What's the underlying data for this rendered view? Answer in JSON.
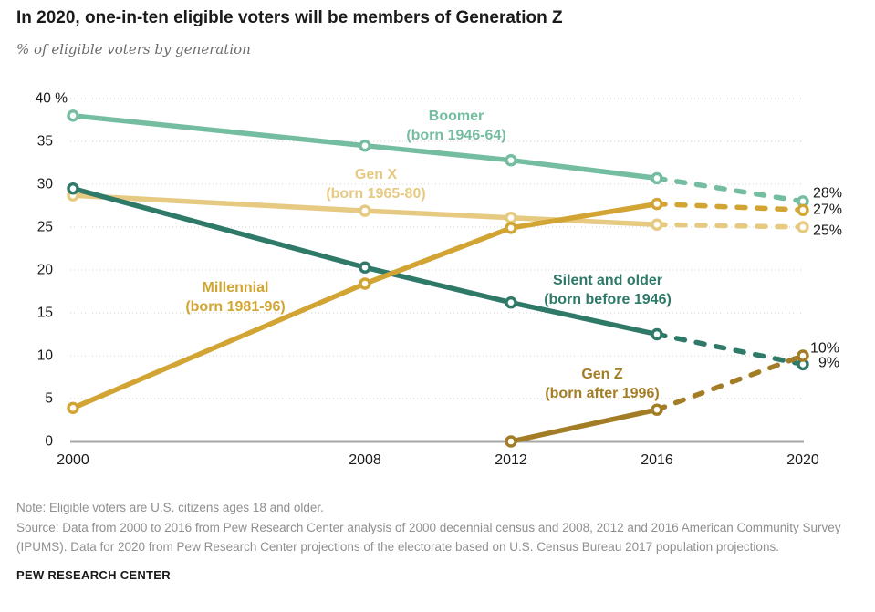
{
  "header": {
    "title": "In 2020, one-in-ten eligible voters will be members of Generation Z",
    "subtitle": "% of eligible voters by generation"
  },
  "chart_data": {
    "type": "line",
    "title": "% of eligible voters by generation",
    "x": [
      2000,
      2008,
      2012,
      2016,
      2020
    ],
    "x_tick_labels": [
      "2000",
      "2008",
      "2012",
      "2016",
      "2020"
    ],
    "y_ticks": [
      0,
      5,
      10,
      15,
      20,
      25,
      30,
      35,
      40
    ],
    "y_tick_labels": [
      "0",
      "5",
      "10",
      "15",
      "20",
      "25",
      "30",
      "35",
      "40 %"
    ],
    "ylim": [
      0,
      40
    ],
    "grid": "dotted-horizontal",
    "dashed_segment_years": [
      2016,
      2020
    ],
    "series": [
      {
        "name": "Boomer",
        "label_lines": [
          "Boomer",
          "(born 1946-64)"
        ],
        "color": "#74bda0",
        "values": [
          38,
          34.5,
          32.8,
          30.7,
          28
        ],
        "end_label": "28%"
      },
      {
        "name": "Gen X",
        "label_lines": [
          "Gen X",
          "(born 1965-80)"
        ],
        "color": "#e7ca82",
        "values": [
          28.7,
          26.9,
          26.1,
          25.3,
          25
        ],
        "end_label": "25%"
      },
      {
        "name": "Millennial",
        "label_lines": [
          "Millennial",
          "(born 1981-96)"
        ],
        "color": "#d2a433",
        "values": [
          3.9,
          18.4,
          24.9,
          27.7,
          27
        ],
        "end_label": "27%"
      },
      {
        "name": "Silent and older",
        "label_lines": [
          "Silent and older",
          "(born before 1946)"
        ],
        "color": "#2e7968",
        "values": [
          29.5,
          20.3,
          16.2,
          12.5,
          9
        ],
        "end_label": "9%"
      },
      {
        "name": "Gen Z",
        "label_lines": [
          "Gen Z",
          "(born after 1996)"
        ],
        "color": "#a37d25",
        "values": [
          null,
          null,
          0,
          3.7,
          10
        ],
        "end_label": "10%"
      }
    ],
    "colors": {
      "gridline": "#cfcfcf",
      "axis": "#a7a7a7",
      "text": "#1a1a1a"
    }
  },
  "footer": {
    "note": "Note: Eligible voters are U.S. citizens ages 18 and older.",
    "source": "Source: Data from 2000 to 2016 from Pew Research Center analysis of 2000 decennial census and 2008, 2012 and 2016 American Community Survey (IPUMS). Data for 2020 from Pew Research Center projections of the electorate based on U.S. Census Bureau 2017 population projections.",
    "brand": "PEW RESEARCH CENTER"
  }
}
